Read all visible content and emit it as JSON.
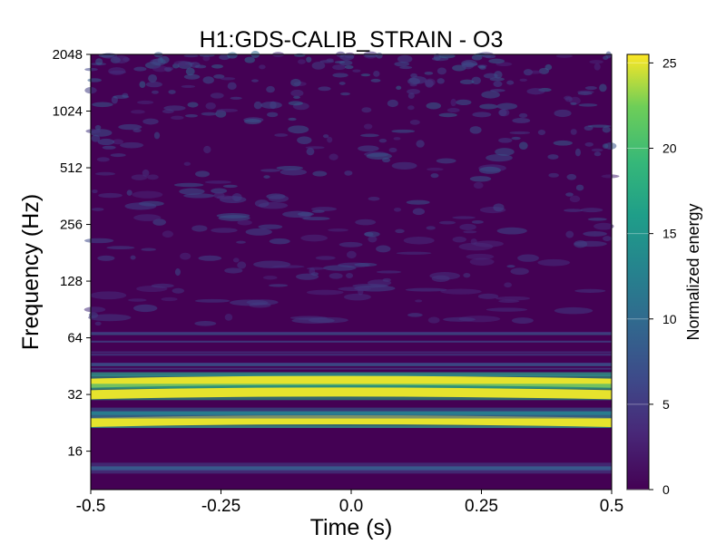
{
  "chart_data": {
    "type": "heatmap",
    "title": "H1:GDS-CALIB_STRAIN - O3",
    "xlabel": "Time (s)",
    "ylabel": "Frequency (Hz)",
    "xlim": [
      -0.5,
      0.5
    ],
    "ylim": [
      10,
      2048
    ],
    "yscale": "log2",
    "x_ticks": [
      "-0.5",
      "-0.25",
      "0.0",
      "0.25",
      "0.5"
    ],
    "x_tick_values": [
      -0.5,
      -0.25,
      0.0,
      0.25,
      0.5
    ],
    "y_ticks": [
      "16",
      "32",
      "64",
      "128",
      "256",
      "512",
      "1024",
      "2048"
    ],
    "y_tick_values": [
      16,
      32,
      64,
      128,
      256,
      512,
      1024,
      2048
    ],
    "colorbar": {
      "label": "Normalized energy",
      "range": [
        0,
        25.5
      ],
      "ticks": [
        "0",
        "5",
        "10",
        "15",
        "20",
        "25"
      ],
      "tick_values": [
        0,
        5,
        10,
        15,
        20,
        25
      ],
      "colormap": "viridis"
    },
    "bands": [
      {
        "freq": 38,
        "energy": 25
      },
      {
        "freq": 33,
        "energy": 25
      },
      {
        "freq": 23.5,
        "energy": 25
      },
      {
        "freq": 25.5,
        "energy": 12
      },
      {
        "freq": 13,
        "energy": 8
      }
    ]
  }
}
